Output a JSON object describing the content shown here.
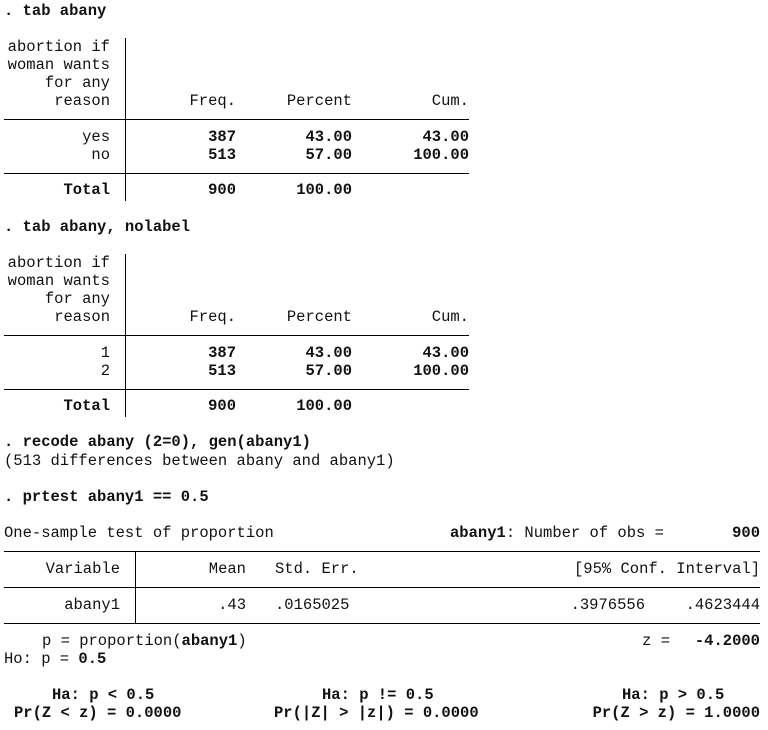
{
  "tab1": {
    "command": ". tab abany",
    "row_header": [
      "abortion if",
      "woman wants",
      "for any",
      "reason"
    ],
    "columns": [
      "Freq.",
      "Percent",
      "Cum."
    ],
    "rows": [
      {
        "label": "yes",
        "freq": "387",
        "percent": "43.00",
        "cum": "43.00"
      },
      {
        "label": "no",
        "freq": "513",
        "percent": "57.00",
        "cum": "100.00"
      }
    ],
    "total": {
      "label": "Total",
      "freq": "900",
      "percent": "100.00"
    }
  },
  "tab2": {
    "command": ". tab abany, nolabel",
    "row_header": [
      "abortion if",
      "woman wants",
      "for any",
      "reason"
    ],
    "columns": [
      "Freq.",
      "Percent",
      "Cum."
    ],
    "rows": [
      {
        "label": "1",
        "freq": "387",
        "percent": "43.00",
        "cum": "43.00"
      },
      {
        "label": "2",
        "freq": "513",
        "percent": "57.00",
        "cum": "100.00"
      }
    ],
    "total": {
      "label": "Total",
      "freq": "900",
      "percent": "100.00"
    }
  },
  "recode": {
    "command": ". recode abany (2=0), gen(abany1)",
    "message": "(513 differences between abany and abany1)"
  },
  "prtest": {
    "command": ". prtest abany1 == 0.5",
    "title": "One-sample test of proportion",
    "obs_var": "abany1",
    "obs_label": ": Number of obs =",
    "obs_value": "900",
    "columns": {
      "variable": "Variable",
      "mean": "Mean",
      "se": "Std. Err.",
      "ci": "[95% Conf. Interval]"
    },
    "row": {
      "variable": "abany1",
      "mean": ".43",
      "se": ".0165025",
      "ci_low": ".3976556",
      "ci_high": ".4623444"
    },
    "p_def_prefix": "p = proportion(",
    "p_def_var": "abany1",
    "p_def_suffix": ")",
    "z_label": "z =",
    "z_value": "-4.2000",
    "ho_prefix": "Ho: p = ",
    "ho_value": "0.5",
    "alternatives": [
      {
        "ha": "Ha: p < 0.5",
        "pr": "Pr(Z < z) = 0.0000"
      },
      {
        "ha": "Ha: p != 0.5",
        "pr": "Pr(|Z| > |z|) = 0.0000"
      },
      {
        "ha": "Ha: p > 0.5",
        "pr": "Pr(Z > z) = 1.0000"
      }
    ]
  }
}
